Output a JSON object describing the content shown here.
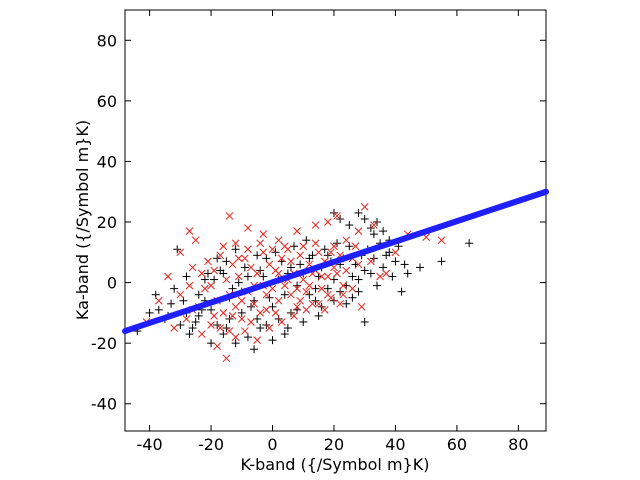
{
  "chart_data": {
    "type": "scatter",
    "xlabel": "K-band ({/Symbol m}K)",
    "ylabel": "Ka-band ({/Symbol m}K)",
    "xlim": [
      -48,
      89
    ],
    "ylim": [
      -49,
      90
    ],
    "xticks": [
      -40,
      -20,
      0,
      20,
      40,
      60,
      80
    ],
    "yticks": [
      -40,
      -20,
      0,
      20,
      40,
      60,
      80
    ],
    "grid": false,
    "legend": "none",
    "colors": {
      "black_plus": "#000000",
      "red_cross": "#e8211b",
      "fit_line": "#1f1fff"
    },
    "series": [
      {
        "marker": "plus",
        "color": "#000000",
        "points": [
          [
            -31,
            11
          ],
          [
            -28,
            2
          ],
          [
            -25,
            -13
          ],
          [
            -22,
            -6
          ],
          [
            -20,
            -20
          ],
          [
            -18,
            8
          ],
          [
            -16,
            -17
          ],
          [
            -14,
            -12
          ],
          [
            -12,
            -20
          ],
          [
            -10,
            -3
          ],
          [
            -8,
            -18
          ],
          [
            -6,
            -22
          ],
          [
            -4,
            -15
          ],
          [
            -2,
            -14
          ],
          [
            0,
            -19
          ],
          [
            2,
            -12
          ],
          [
            4,
            -17
          ],
          [
            6,
            -10
          ],
          [
            8,
            -9
          ],
          [
            10,
            -13
          ],
          [
            12,
            -4
          ],
          [
            14,
            -6
          ],
          [
            16,
            -8
          ],
          [
            18,
            -2
          ],
          [
            20,
            -6
          ],
          [
            22,
            -3
          ],
          [
            24,
            -1
          ],
          [
            26,
            -5
          ],
          [
            28,
            1
          ],
          [
            30,
            -13
          ],
          [
            32,
            3
          ],
          [
            34,
            -1
          ],
          [
            36,
            5
          ],
          [
            38,
            10
          ],
          [
            40,
            7
          ],
          [
            42,
            -3
          ],
          [
            44,
            3
          ],
          [
            48,
            5
          ],
          [
            55,
            7
          ],
          [
            64,
            13
          ],
          [
            20,
            23
          ],
          [
            22,
            21
          ],
          [
            25,
            19
          ],
          [
            28,
            23
          ],
          [
            30,
            21
          ],
          [
            32,
            18
          ],
          [
            33,
            16
          ],
          [
            34,
            20
          ],
          [
            36,
            17
          ],
          [
            38,
            14
          ],
          [
            -37,
            -9
          ],
          [
            -35,
            -12
          ],
          [
            -33,
            -7
          ],
          [
            -30,
            -14
          ],
          [
            -28,
            -10
          ],
          [
            -26,
            -15
          ],
          [
            -24,
            -4
          ],
          [
            -21,
            3
          ],
          [
            -19,
            1
          ],
          [
            -17,
            4
          ],
          [
            -15,
            7
          ],
          [
            -13,
            -2
          ],
          [
            -11,
            0
          ],
          [
            -9,
            5
          ],
          [
            -7,
            -8
          ],
          [
            -5,
            9
          ],
          [
            -3,
            2
          ],
          [
            -1,
            -5
          ],
          [
            1,
            10
          ],
          [
            3,
            7
          ],
          [
            5,
            3
          ],
          [
            7,
            12
          ],
          [
            9,
            6
          ],
          [
            11,
            14
          ],
          [
            13,
            9
          ],
          [
            15,
            2
          ],
          [
            17,
            11
          ],
          [
            19,
            7
          ],
          [
            21,
            13
          ],
          [
            23,
            8
          ],
          [
            25,
            12
          ],
          [
            27,
            6
          ],
          [
            29,
            9
          ],
          [
            31,
            11
          ],
          [
            33,
            8
          ],
          [
            35,
            13
          ],
          [
            37,
            9
          ],
          [
            39,
            2
          ],
          [
            41,
            12
          ],
          [
            43,
            6
          ],
          [
            -44,
            -16
          ],
          [
            -40,
            -10
          ],
          [
            -38,
            -4
          ],
          [
            -34,
            -11
          ],
          [
            -32,
            -2
          ],
          [
            -29,
            -6
          ],
          [
            -27,
            -17
          ],
          [
            -23,
            -9
          ],
          [
            -18,
            -14
          ],
          [
            -16,
            3
          ],
          [
            -14,
            -5
          ],
          [
            -12,
            11
          ],
          [
            -10,
            -10
          ],
          [
            -8,
            2
          ],
          [
            -6,
            -6
          ],
          [
            -4,
            4
          ],
          [
            -2,
            8
          ],
          [
            0,
            -8
          ],
          [
            2,
            1
          ],
          [
            4,
            -4
          ],
          [
            6,
            5
          ],
          [
            8,
            -1
          ],
          [
            10,
            3
          ],
          [
            12,
            8
          ],
          [
            14,
            -2
          ],
          [
            16,
            5
          ],
          [
            18,
            9
          ],
          [
            20,
            1
          ],
          [
            22,
            6
          ],
          [
            24,
            -7
          ],
          [
            26,
            2
          ],
          [
            28,
            -3
          ],
          [
            30,
            4
          ],
          [
            -20,
            -9
          ],
          [
            -22,
            1
          ],
          [
            -24,
            -11
          ],
          [
            -15,
            -15
          ],
          [
            -5,
            -12
          ],
          [
            5,
            -15
          ],
          [
            15,
            -11
          ]
        ]
      },
      {
        "marker": "cross",
        "color": "#e8211b",
        "points": [
          [
            -34,
            2
          ],
          [
            -30,
            -4
          ],
          [
            -28,
            -12
          ],
          [
            -26,
            5
          ],
          [
            -24,
            -8
          ],
          [
            -22,
            -2
          ],
          [
            -20,
            -14
          ],
          [
            -19,
            4
          ],
          [
            -18,
            -6
          ],
          [
            -17,
            9
          ],
          [
            -16,
            -10
          ],
          [
            -15,
            1
          ],
          [
            -14,
            -4
          ],
          [
            -13,
            6
          ],
          [
            -12,
            -8
          ],
          [
            -11,
            2
          ],
          [
            -10,
            -12
          ],
          [
            -9,
            8
          ],
          [
            -8,
            -3
          ],
          [
            -7,
            5
          ],
          [
            -6,
            -7
          ],
          [
            -5,
            3
          ],
          [
            -4,
            -10
          ],
          [
            -3,
            10
          ],
          [
            -2,
            -4
          ],
          [
            -1,
            6
          ],
          [
            0,
            -2
          ],
          [
            1,
            4
          ],
          [
            2,
            -6
          ],
          [
            3,
            8
          ],
          [
            4,
            -1
          ],
          [
            5,
            11
          ],
          [
            6,
            -4
          ],
          [
            7,
            3
          ],
          [
            8,
            -8
          ],
          [
            9,
            9
          ],
          [
            10,
            1
          ],
          [
            11,
            -3
          ],
          [
            12,
            6
          ],
          [
            13,
            -7
          ],
          [
            14,
            4
          ],
          [
            15,
            10
          ],
          [
            16,
            -2
          ],
          [
            17,
            7
          ],
          [
            18,
            2
          ],
          [
            19,
            -5
          ],
          [
            20,
            12
          ],
          [
            21,
            3
          ],
          [
            22,
            9
          ],
          [
            23,
            -1
          ],
          [
            -14,
            22
          ],
          [
            -25,
            14
          ],
          [
            -27,
            17
          ],
          [
            -8,
            18
          ],
          [
            -3,
            16
          ],
          [
            2,
            14
          ],
          [
            8,
            17
          ],
          [
            14,
            19
          ],
          [
            18,
            20
          ],
          [
            21,
            22
          ],
          [
            24,
            14
          ],
          [
            26,
            8
          ],
          [
            28,
            17
          ],
          [
            30,
            25
          ],
          [
            33,
            19
          ],
          [
            37,
            3
          ],
          [
            40,
            10
          ],
          [
            44,
            16
          ],
          [
            50,
            15
          ],
          [
            55,
            14
          ],
          [
            -41,
            -13
          ],
          [
            -37,
            -6
          ],
          [
            -32,
            -15
          ],
          [
            -27,
            -1
          ],
          [
            -23,
            -17
          ],
          [
            -21,
            7
          ],
          [
            -19,
            -11
          ],
          [
            -16,
            12
          ],
          [
            -14,
            -16
          ],
          [
            -12,
            13
          ],
          [
            -10,
            -6
          ],
          [
            -8,
            11
          ],
          [
            -6,
            -1
          ],
          [
            -4,
            13
          ],
          [
            -2,
            -9
          ],
          [
            0,
            11
          ],
          [
            2,
            3
          ],
          [
            4,
            12
          ],
          [
            6,
            7
          ],
          [
            8,
            -2
          ],
          [
            10,
            12
          ],
          [
            12,
            -1
          ],
          [
            14,
            13
          ],
          [
            16,
            2
          ],
          [
            18,
            -4
          ],
          [
            20,
            5
          ],
          [
            22,
            -7
          ],
          [
            24,
            4
          ],
          [
            26,
            -2
          ],
          [
            28,
            6
          ],
          [
            -15,
            -25
          ],
          [
            -18,
            -21
          ],
          [
            -12,
            -18
          ],
          [
            -9,
            -16
          ],
          [
            -5,
            -19
          ],
          [
            -1,
            -15
          ],
          [
            3,
            -13
          ],
          [
            7,
            -11
          ],
          [
            11,
            -9
          ],
          [
            15,
            -7
          ],
          [
            -30,
            10
          ],
          [
            -26,
            -9
          ],
          [
            -23,
            3
          ],
          [
            -20,
            -1
          ],
          [
            -17,
            -15
          ],
          [
            -13,
            -11
          ],
          [
            -11,
            8
          ],
          [
            -7,
            -13
          ],
          [
            -3,
            -1
          ],
          [
            1,
            -10
          ],
          [
            5,
            1
          ],
          [
            9,
            -6
          ],
          [
            13,
            3
          ],
          [
            17,
            -9
          ],
          [
            19,
            10
          ],
          [
            23,
            -4
          ],
          [
            27,
            12
          ],
          [
            29,
            -8
          ],
          [
            32,
            7
          ],
          [
            35,
            2
          ]
        ]
      }
    ],
    "fit_line": {
      "color": "#1f1fff",
      "x": [
        -48,
        89
      ],
      "y": [
        -16,
        30
      ]
    }
  }
}
